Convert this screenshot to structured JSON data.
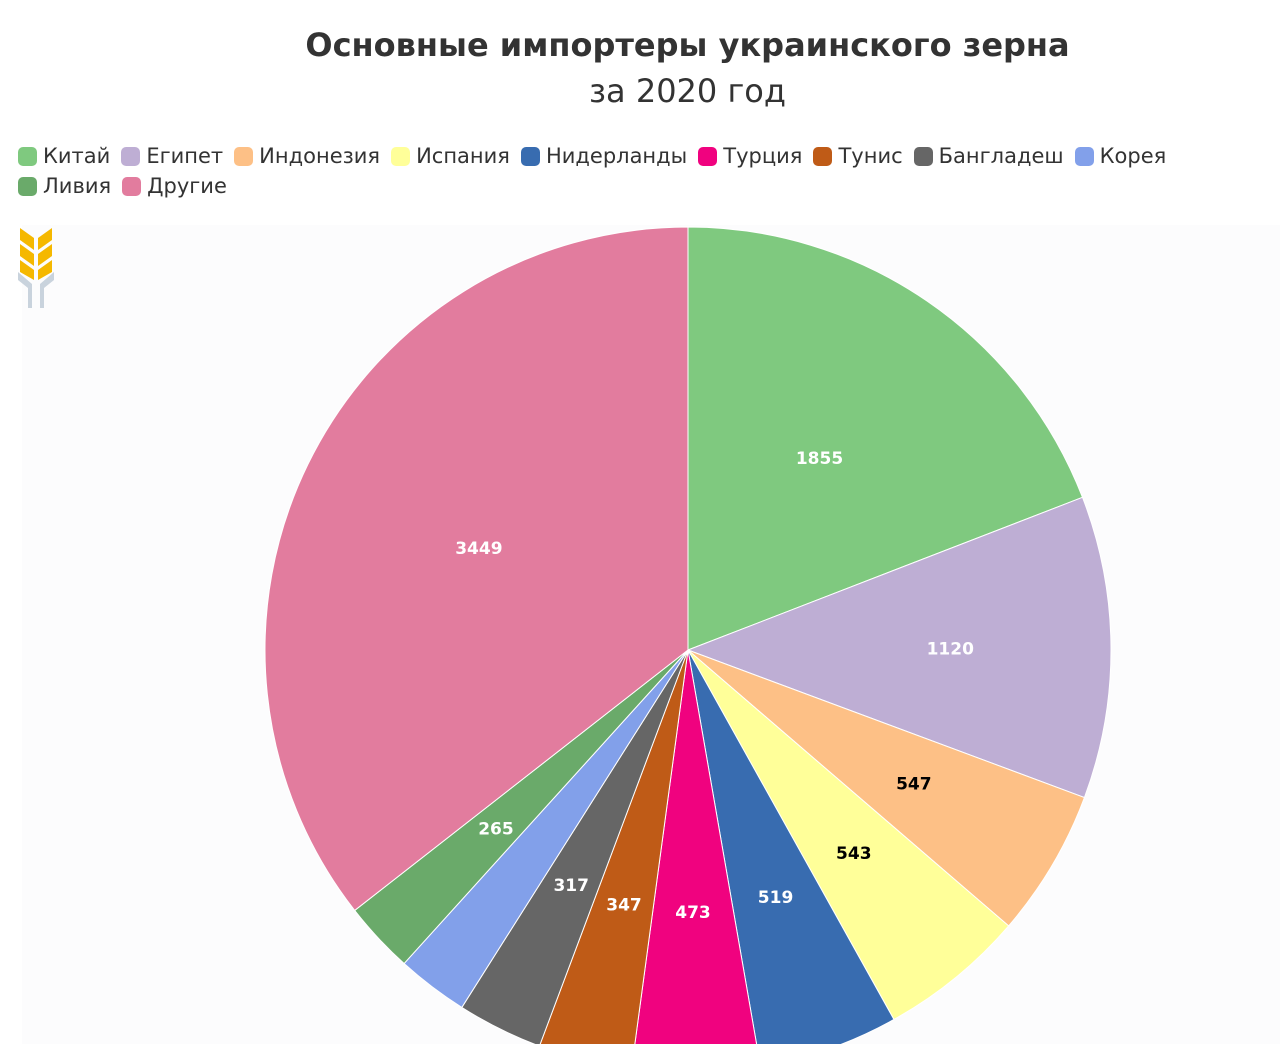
{
  "chart_data": {
    "type": "pie",
    "title": "Основные импортеры украинского зерна",
    "subtitle": "за 2020 год",
    "legend_position": "top-left",
    "categories": [
      "Китай",
      "Египет",
      "Индонезия",
      "Испания",
      "Нидерланды",
      "Турция",
      "Тунис",
      "Бангладеш",
      "Корея",
      "Ливия",
      "Другие"
    ],
    "values": [
      1855,
      1120,
      547,
      543,
      519,
      473,
      347,
      317,
      265,
      265,
      3449
    ],
    "data_labels": [
      "1855",
      "1120",
      "547",
      "543",
      "519",
      "473",
      "347",
      "317",
      "",
      "265",
      "3449"
    ],
    "colors": [
      "#7fc97f",
      "#beaed4",
      "#fdc086",
      "#ffff99",
      "#386cb0",
      "#f0027f",
      "#bf5b17",
      "#666666",
      "#82a0ea",
      "#6aaa6a",
      "#e27c9e"
    ],
    "label_colors": [
      "#ffffff",
      "#ffffff",
      "#000000",
      "#000000",
      "#ffffff",
      "#ffffff",
      "#ffffff",
      "#ffffff",
      "#ffffff",
      "#ffffff",
      "#ffffff"
    ]
  },
  "logo_icon": "wheat-logo-icon"
}
